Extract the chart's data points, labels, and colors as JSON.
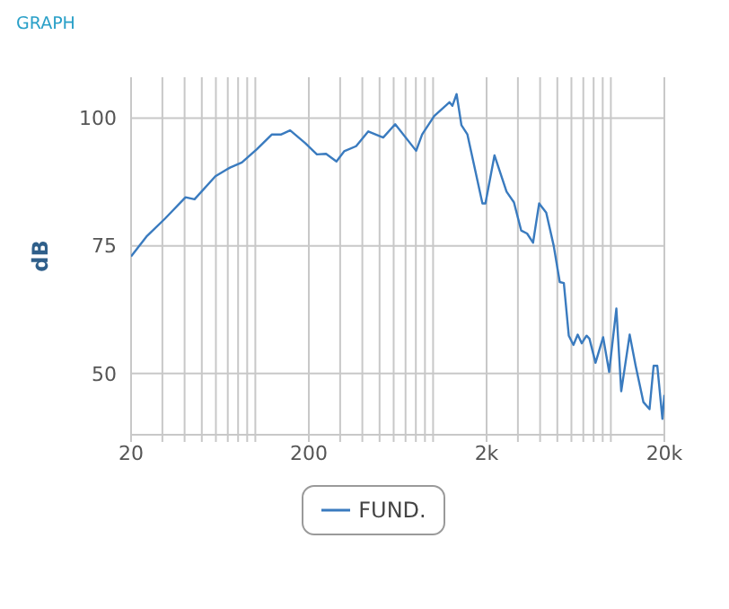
{
  "chart_data": {
    "type": "line",
    "title": "GRAPH",
    "ylabel": "dB",
    "log": "x",
    "grid": true,
    "legend": "bottom",
    "marker": "none",
    "line_style": "solid",
    "xlim": [
      20,
      20000
    ],
    "ylim": [
      38,
      108
    ],
    "xticks": [
      {
        "value": 20,
        "label": "20"
      },
      {
        "value": 30,
        "label": null
      },
      {
        "value": 40,
        "label": null
      },
      {
        "value": 50,
        "label": null
      },
      {
        "value": 60,
        "label": null
      },
      {
        "value": 70,
        "label": null
      },
      {
        "value": 80,
        "label": null
      },
      {
        "value": 90,
        "label": null
      },
      {
        "value": 100,
        "label": null
      },
      {
        "value": 200,
        "label": "200"
      },
      {
        "value": 300,
        "label": null
      },
      {
        "value": 400,
        "label": null
      },
      {
        "value": 500,
        "label": null
      },
      {
        "value": 600,
        "label": null
      },
      {
        "value": 700,
        "label": null
      },
      {
        "value": 800,
        "label": null
      },
      {
        "value": 900,
        "label": null
      },
      {
        "value": 1000,
        "label": null
      },
      {
        "value": 2000,
        "label": "2k"
      },
      {
        "value": 3000,
        "label": null
      },
      {
        "value": 4000,
        "label": null
      },
      {
        "value": 5000,
        "label": null
      },
      {
        "value": 6000,
        "label": null
      },
      {
        "value": 7000,
        "label": null
      },
      {
        "value": 8000,
        "label": null
      },
      {
        "value": 9000,
        "label": null
      },
      {
        "value": 10000,
        "label": null
      },
      {
        "value": 20000,
        "label": "20k"
      }
    ],
    "yticks": [
      50,
      75,
      100
    ],
    "series": [
      {
        "name": "FUND.",
        "color": "#3a7bbf",
        "x": [
          20,
          24.4,
          31,
          40.5,
          45.5,
          59.6,
          72,
          84,
          102,
          124,
          140,
          157,
          191,
          222,
          250,
          286,
          316,
          369,
          432,
          524,
          612,
          803,
          868,
          1015,
          1236,
          1284,
          1356,
          1444,
          1560,
          1895,
          1970,
          2215,
          2590,
          2850,
          3130,
          3380,
          3650,
          3950,
          4330,
          4770,
          5160,
          5440,
          5800,
          6160,
          6510,
          6860,
          7300,
          7580,
          8200,
          9050,
          9780,
          10740,
          11440,
          12760,
          13790,
          15240,
          16500,
          17400,
          18250,
          19500,
          20000
        ],
        "values": [
          72.9,
          76.8,
          80.3,
          84.5,
          84.1,
          88.6,
          90.3,
          91.3,
          93.9,
          96.8,
          96.8,
          97.6,
          95.1,
          92.9,
          93,
          91.5,
          93.5,
          94.5,
          97.4,
          96.2,
          98.8,
          93.6,
          96.8,
          100.4,
          103.1,
          102.4,
          104.7,
          98.6,
          96.8,
          83.3,
          83.3,
          92.7,
          85.6,
          83.5,
          78,
          77.4,
          75.6,
          83.3,
          81.5,
          75,
          67.9,
          67.7,
          57.4,
          55.6,
          57.6,
          55.9,
          57.4,
          56.8,
          52.1,
          57.1,
          50.3,
          62.7,
          46.5,
          57.6,
          51.5,
          44.4,
          43,
          51.5,
          51.5,
          41.1,
          45.8
        ]
      }
    ]
  }
}
